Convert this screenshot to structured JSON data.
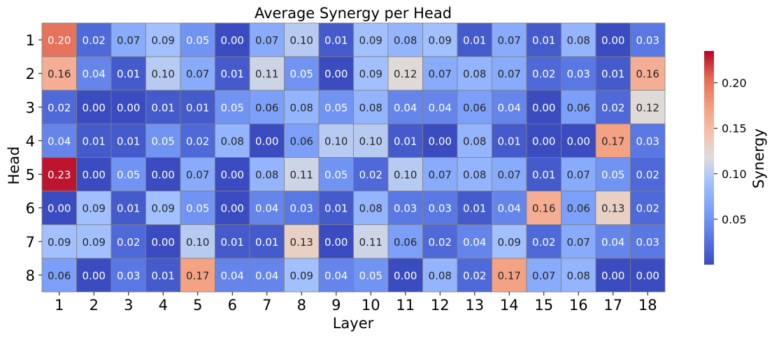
{
  "chart_data": {
    "type": "heatmap",
    "title": "Average Synergy per Head",
    "xlabel": "Layer",
    "ylabel": "Head",
    "x_categories": [
      "1",
      "2",
      "3",
      "4",
      "5",
      "6",
      "7",
      "8",
      "9",
      "10",
      "11",
      "12",
      "13",
      "14",
      "15",
      "16",
      "17",
      "18"
    ],
    "y_categories": [
      "1",
      "2",
      "3",
      "4",
      "5",
      "6",
      "7",
      "8"
    ],
    "values": [
      [
        0.2,
        0.02,
        0.07,
        0.09,
        0.05,
        0.0,
        0.07,
        0.1,
        0.01,
        0.09,
        0.08,
        0.09,
        0.01,
        0.07,
        0.01,
        0.08,
        0.0,
        0.03
      ],
      [
        0.16,
        0.04,
        0.01,
        0.1,
        0.07,
        0.01,
        0.11,
        0.05,
        0.0,
        0.09,
        0.12,
        0.07,
        0.08,
        0.07,
        0.02,
        0.03,
        0.01,
        0.16
      ],
      [
        0.02,
        0.0,
        0.0,
        0.01,
        0.01,
        0.05,
        0.06,
        0.08,
        0.05,
        0.08,
        0.04,
        0.04,
        0.06,
        0.04,
        0.0,
        0.06,
        0.02,
        0.12
      ],
      [
        0.04,
        0.01,
        0.01,
        0.05,
        0.02,
        0.08,
        0.0,
        0.06,
        0.1,
        0.1,
        0.01,
        0.0,
        0.08,
        0.01,
        0.0,
        0.0,
        0.17,
        0.03
      ],
      [
        0.23,
        0.0,
        0.05,
        0.0,
        0.07,
        0.0,
        0.08,
        0.11,
        0.05,
        0.02,
        0.1,
        0.07,
        0.08,
        0.07,
        0.01,
        0.07,
        0.05,
        0.02
      ],
      [
        0.0,
        0.09,
        0.01,
        0.09,
        0.05,
        0.0,
        0.04,
        0.03,
        0.01,
        0.08,
        0.03,
        0.03,
        0.01,
        0.04,
        0.16,
        0.06,
        0.13,
        0.02
      ],
      [
        0.09,
        0.09,
        0.02,
        0.0,
        0.1,
        0.01,
        0.01,
        0.13,
        0.0,
        0.11,
        0.06,
        0.02,
        0.04,
        0.09,
        0.02,
        0.07,
        0.04,
        0.03
      ],
      [
        0.06,
        0.0,
        0.03,
        0.01,
        0.17,
        0.04,
        0.04,
        0.09,
        0.04,
        0.05,
        0.0,
        0.08,
        0.02,
        0.17,
        0.07,
        0.08,
        0.0,
        0.0
      ]
    ],
    "colorscale": "coolwarm",
    "vmin": 0.0,
    "vmax": 0.235,
    "colorbar": {
      "label": "Synergy",
      "ticks": [
        0.05,
        0.1,
        0.15,
        0.2
      ],
      "tick_labels": [
        "0.05",
        "0.10",
        "0.15",
        "0.20"
      ]
    },
    "annotate": true,
    "cell_border_color": "#808080"
  }
}
